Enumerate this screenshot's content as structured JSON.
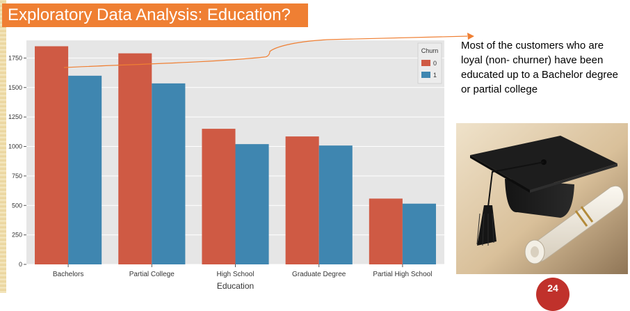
{
  "slide": {
    "title": "Exploratory Data Analysis: Education?",
    "note": "Most of the customers who are loyal  (non- churner) have  been educated up to a Bachelor degree or partial college",
    "page_number": "24"
  },
  "colors": {
    "series0": "#cf5a44",
    "series1": "#3f86b0",
    "plot_bg": "#e6e6e6",
    "title_bar": "#ef7f33",
    "arrow": "#ef7f33",
    "badge": "#c0312b"
  },
  "chart_data": {
    "type": "bar",
    "title": "",
    "xlabel": "Education",
    "ylabel": "",
    "categories": [
      "Bachelors",
      "Partial College",
      "High School",
      "Graduate Degree",
      "Partial High School"
    ],
    "series": [
      {
        "name": "0",
        "values": [
          1850,
          1790,
          1150,
          1085,
          558
        ]
      },
      {
        "name": "1",
        "values": [
          1600,
          1535,
          1020,
          1008,
          515
        ]
      }
    ],
    "ylim": [
      0,
      1900
    ],
    "yticks": [
      0,
      250,
      500,
      750,
      1000,
      1250,
      1500,
      1750
    ],
    "legend": {
      "title": "Churn",
      "position": "top-right"
    },
    "grid": true
  },
  "image": {
    "subject": "graduation-cap-and-diploma"
  }
}
